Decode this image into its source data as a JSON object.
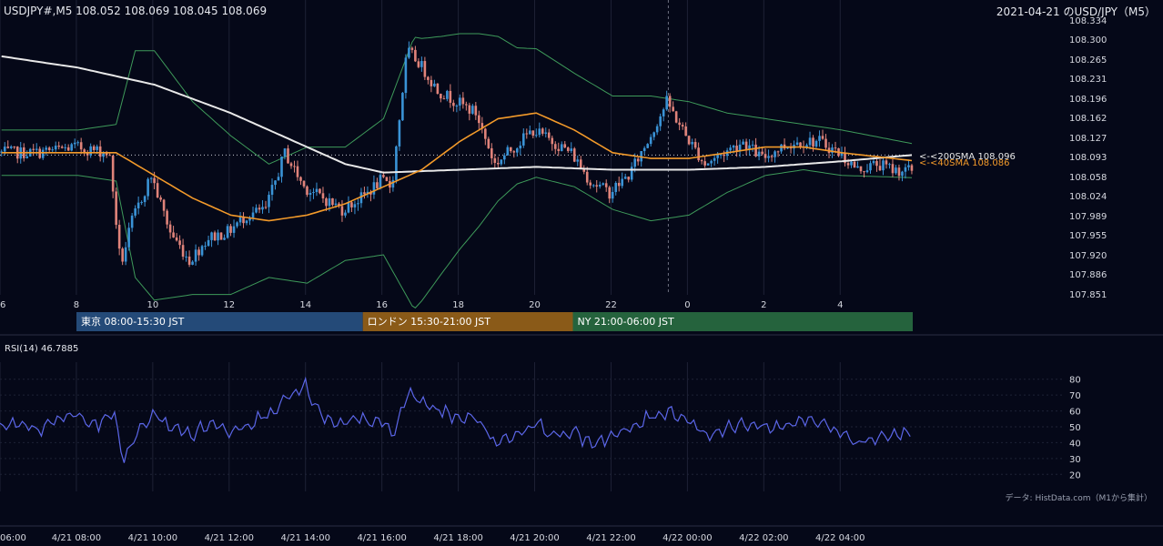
{
  "header": {
    "symbol_info": "USDJPY#,M5 108.052 108.069 108.045 108.069",
    "title": "2021-04-21 のUSD/JPY（M5）"
  },
  "colors": {
    "background": "#050818",
    "candle_up": "#3a93d6",
    "candle_down": "#e0837a",
    "sma200": "#e8e8e8",
    "sma40": "#f39a2a",
    "bollinger": "#3e9a5a",
    "rsi": "#5b66e8",
    "tokyo": "#244a78",
    "london": "#8a5a18",
    "ny": "#25633d"
  },
  "sessions": [
    {
      "label": "東京 08:00-15:30 JST",
      "start": 8.0,
      "end": 15.5,
      "color": "#244a78"
    },
    {
      "label": "ロンドン 15:30-21:00 JST",
      "start": 15.5,
      "end": 21.0,
      "color": "#8a5a18"
    },
    {
      "label": "NY 21:00-06:00 JST",
      "start": 21.0,
      "end": 30.0,
      "color": "#25633d"
    }
  ],
  "legend": {
    "sma200": "<-<200SMA 108.096",
    "sma40": "<-<40SMA 108.086"
  },
  "rsi": {
    "label": "RSI(14) 46.7885"
  },
  "source_note": "データ: HistData.com（M1から集計）",
  "chart_data": [
    {
      "type": "candlestick",
      "title": "2021-04-21 のUSD/JPY（M5）",
      "x_unit": "hours since 2021-04-21 00:00 JST",
      "xlim": [
        6,
        29.9
      ],
      "ylim": [
        107.851,
        108.334
      ],
      "price_ticks": [
        "108.334",
        "108.300",
        "108.265",
        "108.231",
        "108.196",
        "108.162",
        "108.127",
        "108.093",
        "108.058",
        "108.024",
        "107.989",
        "107.955",
        "107.920",
        "107.886",
        "107.851"
      ],
      "hour_ticks": [
        {
          "x": 6,
          "label": "6"
        },
        {
          "x": 8,
          "label": "8"
        },
        {
          "x": 10,
          "label": "10"
        },
        {
          "x": 12,
          "label": "12"
        },
        {
          "x": 14,
          "label": "14"
        },
        {
          "x": 16,
          "label": "16"
        },
        {
          "x": 18,
          "label": "18"
        },
        {
          "x": 20,
          "label": "20"
        },
        {
          "x": 22,
          "label": "22"
        },
        {
          "x": 24,
          "label": "0"
        },
        {
          "x": 26,
          "label": "2"
        },
        {
          "x": 28,
          "label": "4"
        }
      ],
      "date_ticks": [
        {
          "x": 6,
          "label": "06:00"
        },
        {
          "x": 8,
          "label": "4/21 08:00"
        },
        {
          "x": 10,
          "label": "4/21 10:00"
        },
        {
          "x": 12,
          "label": "4/21 12:00"
        },
        {
          "x": 14,
          "label": "4/21 14:00"
        },
        {
          "x": 16,
          "label": "4/21 16:00"
        },
        {
          "x": 18,
          "label": "4/21 18:00"
        },
        {
          "x": 20,
          "label": "4/21 20:00"
        },
        {
          "x": 22,
          "label": "4/21 22:00"
        },
        {
          "x": 24,
          "label": "4/22 00:00"
        },
        {
          "x": 26,
          "label": "4/22 02:00"
        },
        {
          "x": 28,
          "label": "4/22 04:00"
        }
      ],
      "day_divider_x": 23.5,
      "current_price_line": 108.096,
      "price_anchors": [
        [
          6,
          108.1
        ],
        [
          7,
          108.1
        ],
        [
          8,
          108.11
        ],
        [
          8.9,
          108.1
        ],
        [
          9.2,
          107.9
        ],
        [
          9.5,
          107.98
        ],
        [
          10,
          108.06
        ],
        [
          10.5,
          107.96
        ],
        [
          11,
          107.91
        ],
        [
          11.5,
          107.95
        ],
        [
          12,
          107.96
        ],
        [
          12.5,
          107.99
        ],
        [
          13,
          108.0
        ],
        [
          13.5,
          108.1
        ],
        [
          14,
          108.04
        ],
        [
          14.5,
          108.02
        ],
        [
          15,
          108.0
        ],
        [
          15.5,
          108.02
        ],
        [
          16,
          108.05
        ],
        [
          16.3,
          108.04
        ],
        [
          16.7,
          108.28
        ],
        [
          17,
          108.26
        ],
        [
          17.5,
          108.21
        ],
        [
          18,
          108.19
        ],
        [
          18.5,
          108.17
        ],
        [
          19,
          108.08
        ],
        [
          19.5,
          108.11
        ],
        [
          20,
          108.14
        ],
        [
          20.5,
          108.12
        ],
        [
          21,
          108.1
        ],
        [
          21.5,
          108.05
        ],
        [
          22,
          108.03
        ],
        [
          22.5,
          108.06
        ],
        [
          23,
          108.12
        ],
        [
          23.5,
          108.19
        ],
        [
          24,
          108.13
        ],
        [
          24.5,
          108.08
        ],
        [
          25,
          108.1
        ],
        [
          25.5,
          108.12
        ],
        [
          26,
          108.09
        ],
        [
          26.5,
          108.11
        ],
        [
          27,
          108.12
        ],
        [
          27.5,
          108.12
        ],
        [
          28,
          108.1
        ],
        [
          28.5,
          108.07
        ],
        [
          29,
          108.08
        ],
        [
          29.5,
          108.069
        ],
        [
          29.85,
          108.069
        ]
      ],
      "sma40_anchors": [
        [
          6,
          108.1
        ],
        [
          8,
          108.1
        ],
        [
          9,
          108.1
        ],
        [
          10,
          108.06
        ],
        [
          11,
          108.02
        ],
        [
          12,
          107.99
        ],
        [
          13,
          107.98
        ],
        [
          14,
          107.99
        ],
        [
          15,
          108.01
        ],
        [
          16,
          108.04
        ],
        [
          17,
          108.07
        ],
        [
          18,
          108.12
        ],
        [
          19,
          108.16
        ],
        [
          20,
          108.17
        ],
        [
          21,
          108.14
        ],
        [
          22,
          108.1
        ],
        [
          23,
          108.09
        ],
        [
          24,
          108.09
        ],
        [
          25,
          108.1
        ],
        [
          26,
          108.11
        ],
        [
          27,
          108.11
        ],
        [
          28,
          108.1
        ],
        [
          29.85,
          108.086
        ]
      ],
      "sma200_anchors": [
        [
          6,
          108.27
        ],
        [
          8,
          108.25
        ],
        [
          10,
          108.22
        ],
        [
          12,
          108.17
        ],
        [
          14,
          108.11
        ],
        [
          15,
          108.08
        ],
        [
          16,
          108.065
        ],
        [
          18,
          108.07
        ],
        [
          20,
          108.075
        ],
        [
          22,
          108.07
        ],
        [
          24,
          108.07
        ],
        [
          26,
          108.075
        ],
        [
          27,
          108.08
        ],
        [
          28,
          108.085
        ],
        [
          29.85,
          108.096
        ]
      ],
      "bollinger_width_anchors": [
        [
          6,
          0.04
        ],
        [
          8,
          0.04
        ],
        [
          9,
          0.05
        ],
        [
          9.5,
          0.2
        ],
        [
          10,
          0.22
        ],
        [
          11,
          0.17
        ],
        [
          12,
          0.14
        ],
        [
          13,
          0.1
        ],
        [
          14,
          0.12
        ],
        [
          15,
          0.1
        ],
        [
          16,
          0.12
        ],
        [
          16.8,
          0.24
        ],
        [
          17.5,
          0.21
        ],
        [
          18.5,
          0.17
        ],
        [
          19.5,
          0.12
        ],
        [
          21,
          0.1
        ],
        [
          22,
          0.1
        ],
        [
          23,
          0.11
        ],
        [
          24,
          0.1
        ],
        [
          25,
          0.07
        ],
        [
          26,
          0.05
        ],
        [
          27,
          0.04
        ],
        [
          28,
          0.04
        ],
        [
          29.85,
          0.03
        ]
      ],
      "candles_per_hour": 12
    },
    {
      "type": "line",
      "title": "RSI(14) 46.7885",
      "ylim": [
        15,
        85
      ],
      "y_ticks": [
        80,
        70,
        60,
        50,
        40,
        30,
        20
      ],
      "rsi_anchors": [
        [
          6,
          50
        ],
        [
          6.5,
          52
        ],
        [
          7,
          47
        ],
        [
          7.5,
          55
        ],
        [
          8,
          58
        ],
        [
          8.5,
          50
        ],
        [
          9,
          60
        ],
        [
          9.2,
          28
        ],
        [
          9.5,
          42
        ],
        [
          10,
          58
        ],
        [
          10.5,
          50
        ],
        [
          11,
          45
        ],
        [
          11.5,
          52
        ],
        [
          12,
          48
        ],
        [
          12.5,
          52
        ],
        [
          13,
          58
        ],
        [
          13.5,
          68
        ],
        [
          14,
          75
        ],
        [
          14.3,
          60
        ],
        [
          14.8,
          50
        ],
        [
          15,
          52
        ],
        [
          15.5,
          55
        ],
        [
          16,
          52
        ],
        [
          16.3,
          45
        ],
        [
          16.7,
          72
        ],
        [
          17,
          66
        ],
        [
          17.5,
          60
        ],
        [
          18,
          56
        ],
        [
          18.5,
          55
        ],
        [
          19,
          40
        ],
        [
          19.5,
          45
        ],
        [
          20,
          52
        ],
        [
          20.5,
          45
        ],
        [
          21,
          46
        ],
        [
          21.5,
          40
        ],
        [
          22,
          44
        ],
        [
          22.5,
          48
        ],
        [
          23,
          56
        ],
        [
          23.5,
          60
        ],
        [
          24,
          55
        ],
        [
          24.5,
          45
        ],
        [
          25,
          48
        ],
        [
          25.5,
          52
        ],
        [
          26,
          50
        ],
        [
          26.5,
          50
        ],
        [
          27,
          55
        ],
        [
          27.5,
          52
        ],
        [
          28,
          48
        ],
        [
          28.5,
          40
        ],
        [
          29,
          44
        ],
        [
          29.5,
          45
        ],
        [
          29.85,
          46.79
        ]
      ]
    }
  ]
}
